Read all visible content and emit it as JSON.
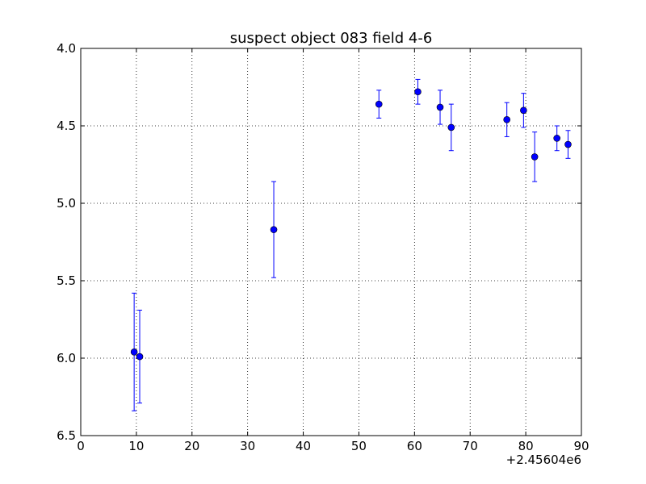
{
  "chart_data": {
    "type": "scatter",
    "title": "suspect object 083 field 4-6",
    "xlabel": "",
    "ylabel": "",
    "x_offset_label": "+2.45604e6",
    "xlim": [
      0,
      90
    ],
    "ylim": [
      6.5,
      4.0
    ],
    "y_inverted": true,
    "grid": true,
    "x_ticks": [
      0,
      10,
      20,
      30,
      40,
      50,
      60,
      70,
      80,
      90
    ],
    "x_tick_labels": [
      "0",
      "10",
      "20",
      "30",
      "40",
      "50",
      "60",
      "70",
      "80",
      "90"
    ],
    "y_ticks": [
      4.0,
      4.5,
      5.0,
      5.5,
      6.0,
      6.5
    ],
    "y_tick_labels": [
      "4.0",
      "4.5",
      "5.0",
      "5.5",
      "6.0",
      "6.5"
    ],
    "marker_color": "#0000ff",
    "points": [
      {
        "x": 9.6,
        "y": 5.96,
        "err": 0.38
      },
      {
        "x": 10.6,
        "y": 5.99,
        "err": 0.3
      },
      {
        "x": 34.7,
        "y": 5.17,
        "err": 0.31
      },
      {
        "x": 53.6,
        "y": 4.36,
        "err": 0.09
      },
      {
        "x": 60.6,
        "y": 4.28,
        "err": 0.08
      },
      {
        "x": 64.6,
        "y": 4.38,
        "err": 0.11
      },
      {
        "x": 66.6,
        "y": 4.51,
        "err": 0.15
      },
      {
        "x": 76.6,
        "y": 4.46,
        "err": 0.11
      },
      {
        "x": 79.6,
        "y": 4.4,
        "err": 0.11
      },
      {
        "x": 81.6,
        "y": 4.7,
        "err": 0.16
      },
      {
        "x": 85.6,
        "y": 4.58,
        "err": 0.08
      },
      {
        "x": 87.6,
        "y": 4.62,
        "err": 0.09
      }
    ]
  }
}
